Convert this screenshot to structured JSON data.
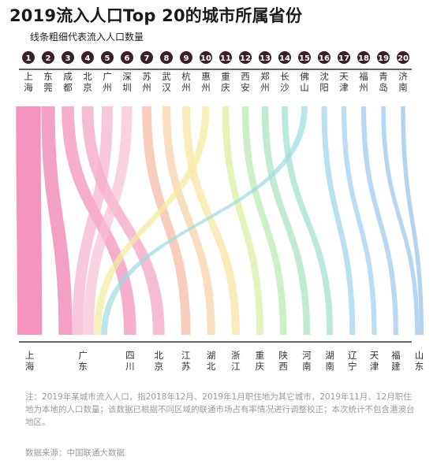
{
  "chart_data": {
    "type": "sankey",
    "title": "2019流入人口Top 20的城市所属省份",
    "subtitle": "线条粗细代表流入人口数量",
    "cities": [
      {
        "rank": "1",
        "name": "上海",
        "province": "上海",
        "weight": 40
      },
      {
        "rank": "2",
        "name": "东莞",
        "province": "广东",
        "weight": 22
      },
      {
        "rank": "3",
        "name": "成都",
        "province": "四川",
        "weight": 20
      },
      {
        "rank": "4",
        "name": "北京",
        "province": "北京",
        "weight": 19
      },
      {
        "rank": "5",
        "name": "广州",
        "province": "广东",
        "weight": 18
      },
      {
        "rank": "6",
        "name": "深圳",
        "province": "广东",
        "weight": 17
      },
      {
        "rank": "7",
        "name": "苏州",
        "province": "江苏",
        "weight": 15
      },
      {
        "rank": "8",
        "name": "武汉",
        "province": "湖北",
        "weight": 13
      },
      {
        "rank": "9",
        "name": "杭州",
        "province": "浙江",
        "weight": 13
      },
      {
        "rank": "10",
        "name": "惠州",
        "province": "广东",
        "weight": 12
      },
      {
        "rank": "11",
        "name": "重庆",
        "province": "重庆",
        "weight": 11
      },
      {
        "rank": "12",
        "name": "西安",
        "province": "陕西",
        "weight": 11
      },
      {
        "rank": "13",
        "name": "郑州",
        "province": "河南",
        "weight": 11
      },
      {
        "rank": "14",
        "name": "长沙",
        "province": "湖南",
        "weight": 10
      },
      {
        "rank": "15",
        "name": "佛山",
        "province": "广东",
        "weight": 10
      },
      {
        "rank": "16",
        "name": "沈阳",
        "province": "辽宁",
        "weight": 9
      },
      {
        "rank": "17",
        "name": "天津",
        "province": "天津",
        "weight": 8
      },
      {
        "rank": "18",
        "name": "福州",
        "province": "福建",
        "weight": 8
      },
      {
        "rank": "19",
        "name": "青岛",
        "province": "山东",
        "weight": 7
      },
      {
        "rank": "20",
        "name": "济南",
        "province": "山东",
        "weight": 7
      }
    ],
    "provinces": [
      "上海",
      "广东",
      "四川",
      "北京",
      "江苏",
      "湖北",
      "浙江",
      "重庆",
      "陕西",
      "河南",
      "湖南",
      "辽宁",
      "天津",
      "福建",
      "山东"
    ],
    "palette": [
      "#f06aa3",
      "#f07cae",
      "#f38fb9",
      "#f3a2c2",
      "#f5b2cd",
      "#f7bfd4",
      "#f6b8a4",
      "#f7d1a3",
      "#f7e4a1",
      "#f3eb9e",
      "#d9ee9e",
      "#b9e8b4",
      "#a7e3c1",
      "#9ee0cf",
      "#9fdbe0",
      "#9fd3e8",
      "#a3cdee",
      "#9fc6ec",
      "#9bc3ea",
      "#98c0e8"
    ]
  },
  "note": "注：2019年某城市流入人口，指2018年12月、2019年1月职住地为其它城市，2019年11月、12月职住地为本地的人口数量；该数据已根据不同区域的联通市场占有率情况进行调整校正；本次统计不包含港澳台地区。",
  "source": "数据来源：中国联通大数据"
}
